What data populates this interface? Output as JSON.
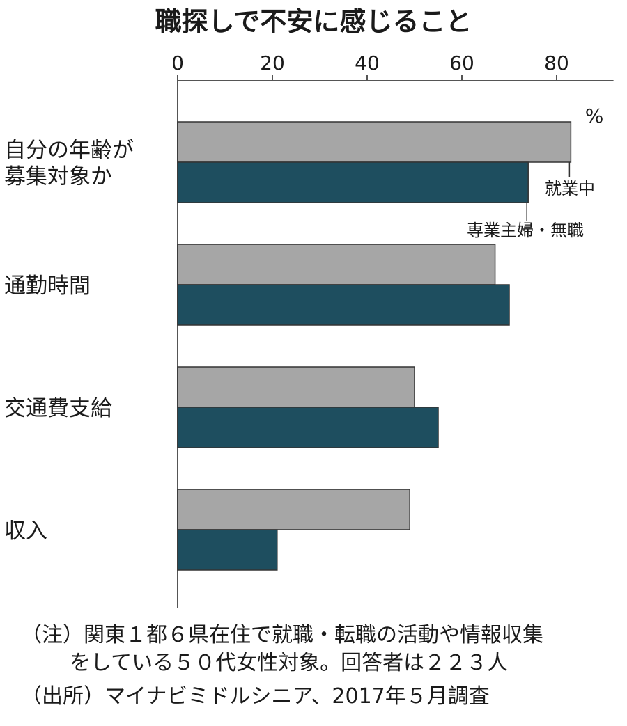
{
  "chart_data": {
    "type": "bar",
    "title": "職探しで不安に感じること",
    "unit": "%",
    "xlim": [
      0,
      92
    ],
    "ticks": [
      0,
      20,
      40,
      60,
      80
    ],
    "grid": false,
    "categories": [
      [
        "自分の年齢が",
        "募集対象か"
      ],
      [
        "通勤時間"
      ],
      [
        "交通費支給"
      ],
      [
        "収入"
      ]
    ],
    "series": [
      {
        "name": "就業中",
        "values": [
          83,
          67,
          50,
          49
        ],
        "color": "#a6a6a6"
      },
      {
        "name": "専業主婦・無職",
        "values": [
          74,
          70,
          55,
          21
        ],
        "color": "#1e4e5f"
      }
    ]
  },
  "notes": {
    "note_line1": "（注）関東１都６県在住で就職・転職の活動や情報収集",
    "note_line2": "をしている５０代女性対象。回答者は２２３人",
    "source": "（出所）マイナビミドルシニア、2017年５月調査"
  }
}
